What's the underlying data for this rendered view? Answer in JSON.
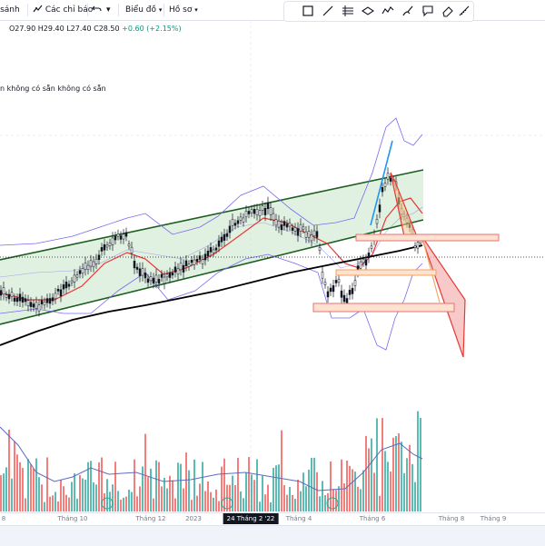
{
  "toolbar": {
    "compare_label": "So sánh",
    "indicators_label": "Các chỉ báo",
    "undo_icon": "undo-icon",
    "chart_type_label": "Biểu đồ",
    "profile_label": "Hồ sơ"
  },
  "drawing_tools": [
    "rectangle-icon",
    "trend-line-icon",
    "hash-pattern-icon",
    "ellipse-icon",
    "path-icon",
    "brush-icon",
    "note-icon",
    "eraser-icon",
    "ruler-icon"
  ],
  "ohlc": {
    "open": "O27.90",
    "high": "H29.40",
    "low": "L27.40",
    "close": "C28.50",
    "change": "+0.60 (+2.15%)"
  },
  "indicator_legend": "n không có sẵn không có sẵn",
  "x_axis": {
    "labels": [
      "8",
      "Tháng 10",
      "Tháng 12",
      "2023",
      "Tháng 4",
      "Tháng 6",
      "Tháng 8",
      "Tháng 9"
    ],
    "crosshair_label": "24 Tháng 2 '22"
  },
  "colors": {
    "channel_fill": "#c8e6c9",
    "channel_line": "#1b5e20",
    "bollinger": "#7b68ee",
    "ma_red": "#e53935",
    "ma_black": "#000000",
    "bullish_volume": "#26a69a",
    "bearish_volume": "#ef5350",
    "zone_fill": "#fde2cf",
    "zone_border": "#f4a15d",
    "projection_fill": "#f4b7b7",
    "accent_blue": "#2196f3"
  }
}
